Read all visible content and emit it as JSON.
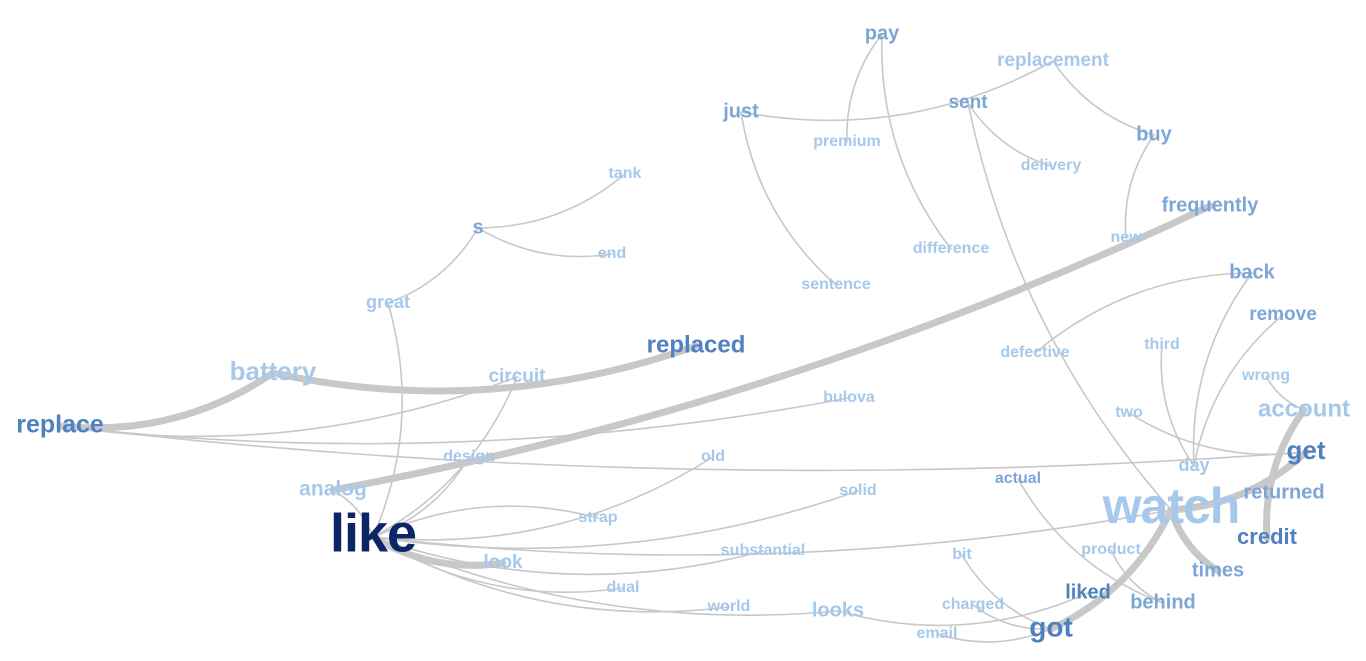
{
  "words": [
    {
      "id": "pay",
      "text": "pay",
      "weight": 2
    },
    {
      "id": "replacement",
      "text": "replacement",
      "weight": 1
    },
    {
      "id": "just",
      "text": "just",
      "weight": 2
    },
    {
      "id": "sent",
      "text": "sent",
      "weight": 2
    },
    {
      "id": "buy",
      "text": "buy",
      "weight": 2
    },
    {
      "id": "premium",
      "text": "premium",
      "weight": 1
    },
    {
      "id": "delivery",
      "text": "delivery",
      "weight": 1
    },
    {
      "id": "tank",
      "text": "tank",
      "weight": 1
    },
    {
      "id": "frequently",
      "text": "frequently",
      "weight": 2
    },
    {
      "id": "s",
      "text": "s",
      "weight": 2
    },
    {
      "id": "new",
      "text": "new",
      "weight": 1
    },
    {
      "id": "difference",
      "text": "difference",
      "weight": 1
    },
    {
      "id": "end",
      "text": "end",
      "weight": 1
    },
    {
      "id": "back",
      "text": "back",
      "weight": 2
    },
    {
      "id": "sentence",
      "text": "sentence",
      "weight": 1
    },
    {
      "id": "great",
      "text": "great",
      "weight": 1
    },
    {
      "id": "remove",
      "text": "remove",
      "weight": 2
    },
    {
      "id": "replaced",
      "text": "replaced",
      "weight": 3
    },
    {
      "id": "third",
      "text": "third",
      "weight": 1
    },
    {
      "id": "defective",
      "text": "defective",
      "weight": 1
    },
    {
      "id": "battery",
      "text": "battery",
      "weight": 1
    },
    {
      "id": "circuit",
      "text": "circuit",
      "weight": 1
    },
    {
      "id": "wrong",
      "text": "wrong",
      "weight": 1
    },
    {
      "id": "bulova",
      "text": "bulova",
      "weight": 1
    },
    {
      "id": "account",
      "text": "account",
      "weight": 1
    },
    {
      "id": "two",
      "text": "two",
      "weight": 1
    },
    {
      "id": "replace",
      "text": "replace",
      "weight": 3
    },
    {
      "id": "get",
      "text": "get",
      "weight": 3
    },
    {
      "id": "design",
      "text": "design",
      "weight": 1
    },
    {
      "id": "old",
      "text": "old",
      "weight": 1
    },
    {
      "id": "day",
      "text": "day",
      "weight": 1
    },
    {
      "id": "actual",
      "text": "actual",
      "weight": 2
    },
    {
      "id": "analog",
      "text": "analog",
      "weight": 1
    },
    {
      "id": "returned",
      "text": "returned",
      "weight": 2
    },
    {
      "id": "solid",
      "text": "solid",
      "weight": 1
    },
    {
      "id": "watch",
      "text": "watch",
      "weight": 1
    },
    {
      "id": "strap",
      "text": "strap",
      "weight": 1
    },
    {
      "id": "like",
      "text": "like",
      "weight": 4
    },
    {
      "id": "credit",
      "text": "credit",
      "weight": 3
    },
    {
      "id": "product",
      "text": "product",
      "weight": 1
    },
    {
      "id": "substantial",
      "text": "substantial",
      "weight": 1
    },
    {
      "id": "bit",
      "text": "bit",
      "weight": 1
    },
    {
      "id": "look",
      "text": "look",
      "weight": 1
    },
    {
      "id": "times",
      "text": "times",
      "weight": 2
    },
    {
      "id": "dual",
      "text": "dual",
      "weight": 1
    },
    {
      "id": "liked",
      "text": "liked",
      "weight": 3
    },
    {
      "id": "behind",
      "text": "behind",
      "weight": 2
    },
    {
      "id": "world",
      "text": "world",
      "weight": 1
    },
    {
      "id": "looks",
      "text": "looks",
      "weight": 1
    },
    {
      "id": "charged",
      "text": "charged",
      "weight": 1
    },
    {
      "id": "got",
      "text": "got",
      "weight": 3
    },
    {
      "id": "email",
      "text": "email",
      "weight": 1
    }
  ],
  "links": [
    {
      "from": "replace",
      "to": "battery",
      "weight": 3
    },
    {
      "from": "battery",
      "to": "replaced",
      "weight": 3
    },
    {
      "from": "analog",
      "to": "frequently",
      "weight": 3
    },
    {
      "from": "like",
      "to": "look",
      "weight": 3
    },
    {
      "from": "watch",
      "to": "get",
      "weight": 3
    },
    {
      "from": "got",
      "to": "watch",
      "weight": 3
    },
    {
      "from": "account",
      "to": "credit",
      "weight": 3
    },
    {
      "from": "watch",
      "to": "times",
      "weight": 3
    },
    {
      "from": "pay",
      "to": "premium",
      "weight": 1
    },
    {
      "from": "pay",
      "to": "difference",
      "weight": 1
    },
    {
      "from": "just",
      "to": "replacement",
      "weight": 1
    },
    {
      "from": "just",
      "to": "sentence",
      "weight": 1
    },
    {
      "from": "replacement",
      "to": "buy",
      "weight": 1
    },
    {
      "from": "buy",
      "to": "new",
      "weight": 1
    },
    {
      "from": "sent",
      "to": "delivery",
      "weight": 1
    },
    {
      "from": "sent",
      "to": "watch",
      "weight": 1
    },
    {
      "from": "s",
      "to": "tank",
      "weight": 1
    },
    {
      "from": "s",
      "to": "end",
      "weight": 1
    },
    {
      "from": "great",
      "to": "s",
      "weight": 1
    },
    {
      "from": "like",
      "to": "great",
      "weight": 1
    },
    {
      "from": "like",
      "to": "design",
      "weight": 1
    },
    {
      "from": "like",
      "to": "old",
      "weight": 1
    },
    {
      "from": "like",
      "to": "solid",
      "weight": 1
    },
    {
      "from": "like",
      "to": "circuit",
      "weight": 1
    },
    {
      "from": "like",
      "to": "substantial",
      "weight": 1
    },
    {
      "from": "like",
      "to": "dual",
      "weight": 1
    },
    {
      "from": "like",
      "to": "world",
      "weight": 1
    },
    {
      "from": "like",
      "to": "looks",
      "weight": 1
    },
    {
      "from": "like",
      "to": "watch",
      "weight": 1
    },
    {
      "from": "like",
      "to": "analog",
      "weight": 1
    },
    {
      "from": "replace",
      "to": "circuit",
      "weight": 1
    },
    {
      "from": "replace",
      "to": "bulova",
      "weight": 1
    },
    {
      "from": "replace",
      "to": "get",
      "weight": 1
    },
    {
      "from": "back",
      "to": "defective",
      "weight": 1
    },
    {
      "from": "back",
      "to": "day",
      "weight": 1
    },
    {
      "from": "remove",
      "to": "day",
      "weight": 1
    },
    {
      "from": "third",
      "to": "day",
      "weight": 1
    },
    {
      "from": "two",
      "to": "get",
      "weight": 1
    },
    {
      "from": "wrong",
      "to": "account",
      "weight": 1
    },
    {
      "from": "actual",
      "to": "behind",
      "weight": 1
    },
    {
      "from": "product",
      "to": "behind",
      "weight": 1
    },
    {
      "from": "bit",
      "to": "got",
      "weight": 1
    },
    {
      "from": "looks",
      "to": "liked",
      "weight": 1
    },
    {
      "from": "charged",
      "to": "got",
      "weight": 1
    },
    {
      "from": "email",
      "to": "got",
      "weight": 1
    },
    {
      "from": "strap",
      "to": "like",
      "weight": 1
    }
  ]
}
